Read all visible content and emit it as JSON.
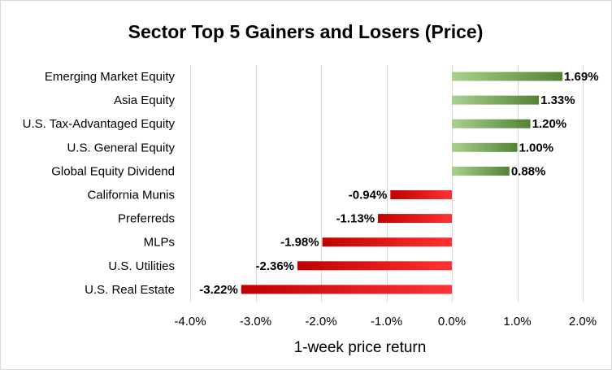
{
  "chart_data": {
    "type": "bar",
    "orientation": "horizontal",
    "title": "Sector Top 5 Gainers and Losers (Price)",
    "xlabel": "1-week price return",
    "ylabel": "",
    "categories": [
      "Emerging Market Equity",
      "Asia Equity",
      "U.S. Tax-Advantaged Equity",
      "U.S. General Equity",
      "Global Equity Dividend",
      "California Munis",
      "Preferreds",
      "MLPs",
      "U.S. Utilities",
      "U.S. Real Estate"
    ],
    "values": [
      1.69,
      1.33,
      1.2,
      1.0,
      0.88,
      -0.94,
      -1.13,
      -1.98,
      -2.36,
      -3.22
    ],
    "data_labels": [
      "1.69%",
      "1.33%",
      "1.20%",
      "1.00%",
      "0.88%",
      "-0.94%",
      "-1.13%",
      "-1.98%",
      "-2.36%",
      "-3.22%"
    ],
    "xlim": [
      -4.0,
      2.0
    ],
    "x_ticks": [
      -4.0,
      -3.0,
      -2.0,
      -1.0,
      0.0,
      1.0,
      2.0
    ],
    "x_tick_labels": [
      "-4.0%",
      "-3.0%",
      "-2.0%",
      "-1.0%",
      "0.0%",
      "1.0%",
      "2.0%"
    ],
    "grid": "vertical",
    "legend": "none",
    "colors": {
      "positive_light": "#a9d18e",
      "positive_dark": "#548235",
      "negative_light": "#ff3333",
      "negative_dark": "#c00000"
    }
  }
}
